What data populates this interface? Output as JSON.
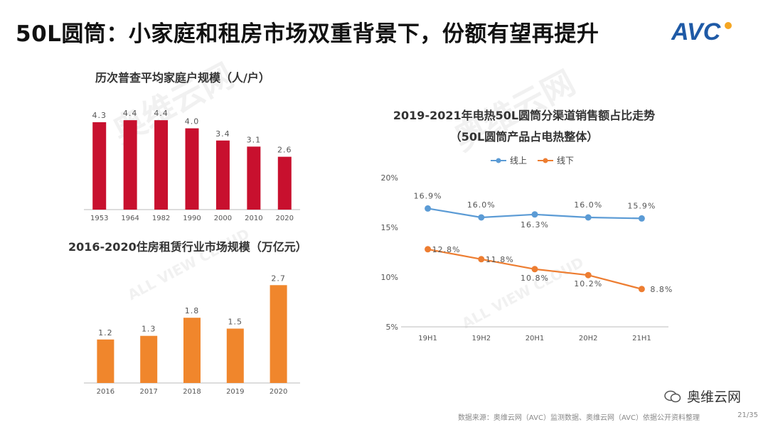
{
  "slide": {
    "title": "50L圆筒：小家庭和租房市场双重背景下，份额有望再提升",
    "logo_text": "AVC",
    "watermark_cn": "奥维云网",
    "watermark_en": "ALL VIEW CLOUD",
    "wechat_label": "奥维云网",
    "source_note": "数据来源：奥维云网（AVC）监测数据、奥维云网（AVC）依据公开资料整理",
    "page_number": "21/35"
  },
  "colors": {
    "red": "#C8102E",
    "orange": "#F0862C",
    "blue": "#5B9BD5",
    "line_orange": "#ED7D31",
    "brand_blue": "#1F5AA6"
  },
  "chart_data": [
    {
      "type": "bar",
      "title": "历次普查平均家庭户规模（人/户）",
      "categories": [
        "1953",
        "1964",
        "1982",
        "1990",
        "2000",
        "2010",
        "2020"
      ],
      "values": [
        4.3,
        4.4,
        4.4,
        4.0,
        3.4,
        3.1,
        2.6
      ],
      "labels": [
        "4.3",
        "4.4",
        "4.4",
        "4.0",
        "3.4",
        "3.1",
        "2.6"
      ],
      "ylim": [
        0,
        5
      ],
      "color": "#C8102E",
      "grid": false
    },
    {
      "type": "bar",
      "title": "2016-2020住房租赁行业市场规模（万亿元）",
      "categories": [
        "2016",
        "2017",
        "2018",
        "2019",
        "2020"
      ],
      "values": [
        1.2,
        1.3,
        1.8,
        1.5,
        2.7
      ],
      "labels": [
        "1.2",
        "1.3",
        "1.8",
        "1.5",
        "2.7"
      ],
      "ylim": [
        0,
        3
      ],
      "color": "#F0862C",
      "grid": false
    },
    {
      "type": "line",
      "title": "2019-2021年电热50L圆筒分渠道销售额占比走势",
      "subtitle": "（50L圆筒产品占电热整体）",
      "categories": [
        "19H1",
        "19H2",
        "20H1",
        "20H2",
        "21H1"
      ],
      "yticks": [
        "20%",
        "15%",
        "10%",
        "5%"
      ],
      "ylim": [
        5,
        20
      ],
      "legend_position": "top",
      "series": [
        {
          "name": "线上",
          "values": [
            16.9,
            16.0,
            16.3,
            16.0,
            15.9
          ],
          "labels": [
            "16.9%",
            "16.0%",
            "16.3%",
            "16.0%",
            "15.9%"
          ],
          "color": "#5B9BD5"
        },
        {
          "name": "线下",
          "values": [
            12.8,
            11.8,
            10.8,
            10.2,
            8.8
          ],
          "labels": [
            "12.8%",
            "11.8%",
            "10.8%",
            "10.2%",
            "8.8%"
          ],
          "color": "#ED7D31"
        }
      ]
    }
  ]
}
